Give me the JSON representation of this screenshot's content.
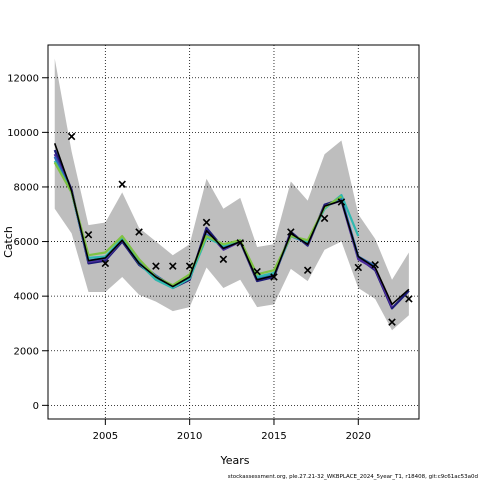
{
  "chart_data": {
    "type": "line",
    "title": "",
    "xlabel": "Years",
    "ylabel": "Catch",
    "xlim": [
      2001.6,
      2023.6
    ],
    "ylim": [
      -500,
      13200
    ],
    "x_ticks": [
      2005,
      2010,
      2015,
      2020
    ],
    "y_ticks": [
      0,
      2000,
      4000,
      6000,
      8000,
      10000,
      12000
    ],
    "grid": true,
    "legend": "none",
    "colors": {
      "band": "#bebebe",
      "points": "#000000",
      "line_black": "#000000",
      "line_navy": "#1b1a77",
      "line_purple": "#4b2b9a",
      "line_blue": "#2c69b8",
      "line_teal": "#2fb8b0",
      "line_green": "#7ec242"
    },
    "band": {
      "x": [
        2002,
        2003,
        2004,
        2005,
        2006,
        2007,
        2008,
        2009,
        2010,
        2011,
        2012,
        2013,
        2014,
        2015,
        2016,
        2017,
        2018,
        2019,
        2020,
        2021,
        2022,
        2023
      ],
      "upper": [
        12700,
        9300,
        6600,
        6700,
        7800,
        6500,
        6000,
        5500,
        5900,
        8300,
        7200,
        7600,
        5800,
        5900,
        8200,
        7500,
        9200,
        9700,
        7000,
        6100,
        4600,
        5600
      ],
      "lower": [
        7200,
        6300,
        4150,
        4150,
        4700,
        4050,
        3800,
        3450,
        3600,
        5050,
        4300,
        4600,
        3600,
        3700,
        5000,
        4550,
        5700,
        6000,
        4300,
        3900,
        2750,
        3300
      ]
    },
    "observed": {
      "x": [
        2003,
        2004,
        2005,
        2006,
        2007,
        2008,
        2009,
        2010,
        2011,
        2012,
        2013,
        2014,
        2015,
        2016,
        2017,
        2018,
        2019,
        2020,
        2021,
        2022,
        2023
      ],
      "y": [
        9850,
        6250,
        5200,
        8100,
        6350,
        5100,
        5100,
        5100,
        6700,
        5350,
        5950,
        4900,
        4700,
        6350,
        4950,
        6850,
        7450,
        5050,
        5150,
        3050,
        3900
      ]
    },
    "series": [
      {
        "style": "navy",
        "x": [
          2002,
          2003,
          2004,
          2005,
          2006,
          2007,
          2008,
          2009,
          2010,
          2011,
          2012,
          2013,
          2014,
          2015,
          2016,
          2017,
          2018,
          2019,
          2020,
          2021,
          2022,
          2023
        ],
        "values": [
          9350,
          7900,
          5200,
          5300,
          6000,
          5150,
          4700,
          4300,
          4600,
          6500,
          5750,
          6000,
          4550,
          4700,
          6350,
          5850,
          7350,
          7550,
          5400,
          4950,
          3550,
          4200
        ]
      },
      {
        "style": "purple",
        "x": [
          2002,
          2003,
          2004,
          2005,
          2006,
          2007,
          2008,
          2009,
          2010,
          2011,
          2012,
          2013,
          2014,
          2015,
          2016,
          2017,
          2018,
          2019,
          2020,
          2021,
          2022
        ],
        "values": [
          9200,
          7850,
          5250,
          5350,
          6050,
          5200,
          4750,
          4350,
          4650,
          6400,
          5700,
          6000,
          4600,
          4750,
          6300,
          5900,
          7300,
          7500,
          5350,
          5000,
          3600
        ]
      },
      {
        "style": "blue",
        "x": [
          2002,
          2003,
          2004,
          2005,
          2006,
          2007,
          2008,
          2009,
          2010,
          2011,
          2012,
          2013,
          2014,
          2015,
          2016,
          2017,
          2018,
          2019,
          2020,
          2021
        ],
        "values": [
          9100,
          7800,
          5300,
          5400,
          6100,
          5250,
          4750,
          4350,
          4700,
          6250,
          5800,
          6000,
          4650,
          4800,
          6200,
          5950,
          7250,
          7600,
          5450,
          5100
        ]
      },
      {
        "style": "teal",
        "x": [
          2002,
          2003,
          2004,
          2005,
          2006,
          2007,
          2008,
          2009,
          2010,
          2011,
          2012,
          2013,
          2014,
          2015,
          2016,
          2017,
          2018,
          2019,
          2020
        ],
        "values": [
          8950,
          7800,
          5400,
          5450,
          6100,
          5200,
          4600,
          4300,
          4650,
          6150,
          5850,
          6050,
          4700,
          4850,
          6200,
          6000,
          7200,
          7700,
          6200
        ]
      },
      {
        "style": "green",
        "x": [
          2002,
          2003,
          2004,
          2005,
          2006,
          2007,
          2008,
          2009,
          2010,
          2011,
          2012,
          2013,
          2014,
          2015,
          2016,
          2017,
          2018,
          2019
        ],
        "values": [
          8900,
          7800,
          5500,
          5600,
          6200,
          5350,
          4700,
          4400,
          4800,
          6200,
          5900,
          6050,
          4800,
          4950,
          6200,
          6050,
          7250,
          7650
        ]
      },
      {
        "style": "black",
        "x": [
          2002,
          2003,
          2004,
          2005,
          2006,
          2007,
          2008,
          2009,
          2010,
          2011,
          2012,
          2013,
          2014,
          2015,
          2016,
          2017,
          2018,
          2019,
          2020,
          2021,
          2022,
          2023
        ],
        "values": [
          9600,
          7850,
          5300,
          5400,
          6050,
          5200,
          4700,
          4350,
          4700,
          6400,
          5750,
          6000,
          4600,
          4750,
          6300,
          5900,
          7300,
          7500,
          5450,
          5050,
          3700,
          4250
        ]
      }
    ]
  },
  "footer": "stockassessment.org, ple.27.21-32_WKBPLACE_2024_5year_T1, r18408, git:c9c61ac53a0d"
}
